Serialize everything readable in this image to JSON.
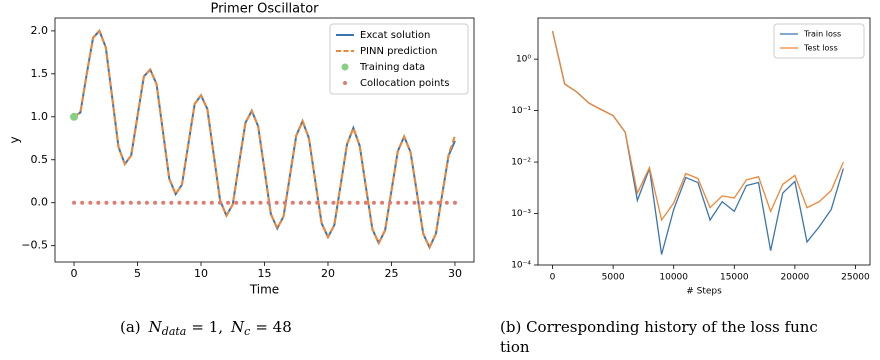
{
  "chart_data": [
    {
      "type": "line",
      "title": "Primer Oscillator",
      "xlabel": "Time",
      "ylabel": "y",
      "xlim": [
        -1.5,
        31.5
      ],
      "xticks": [
        0,
        5,
        10,
        15,
        20,
        25,
        30
      ],
      "ylim": [
        -0.69,
        2.15
      ],
      "yticks": [
        {
          "value": -0.5,
          "label": "−0.5"
        },
        {
          "value": 0,
          "label": "0.0"
        },
        0.5,
        {
          "value": 1,
          "label": "1.0"
        },
        1.5,
        {
          "value": 2,
          "label": "2.0"
        }
      ],
      "legend": "upper right",
      "series": [
        {
          "name": "Excat solution",
          "color": "#3a75b0",
          "linestyle": "solid",
          "x": [
            0,
            0.5,
            1,
            1.5,
            2,
            2.5,
            3,
            3.5,
            4,
            4.5,
            5,
            5.5,
            6,
            6.5,
            7,
            7.5,
            8,
            8.5,
            9,
            9.5,
            10,
            10.5,
            11,
            11.5,
            12,
            12.5,
            13,
            13.5,
            14,
            14.5,
            15,
            15.5,
            16,
            16.5,
            17,
            17.5,
            18,
            18.5,
            19,
            19.5,
            20,
            20.5,
            21,
            21.5,
            22,
            22.5,
            23,
            23.5,
            24,
            24.5,
            25,
            25.5,
            26,
            26.5,
            27,
            27.5,
            28,
            28.5,
            29,
            29.5,
            30
          ],
          "values": [
            1.0,
            1.05,
            1.5,
            1.92,
            2.0,
            1.81,
            1.23,
            0.65,
            0.45,
            0.55,
            1.01,
            1.47,
            1.55,
            1.38,
            0.83,
            0.28,
            0.1,
            0.21,
            0.68,
            1.15,
            1.25,
            1.09,
            0.56,
            0.03,
            -0.15,
            -0.02,
            0.46,
            0.93,
            1.07,
            0.89,
            0.38,
            -0.13,
            -0.3,
            -0.16,
            0.31,
            0.78,
            0.95,
            0.75,
            0.25,
            -0.24,
            -0.4,
            -0.26,
            0.21,
            0.68,
            0.87,
            0.66,
            0.17,
            -0.31,
            -0.47,
            -0.32,
            0.14,
            0.6,
            0.77,
            0.59,
            0.12,
            -0.36,
            -0.52,
            -0.36,
            0.1,
            0.55,
            0.72
          ]
        },
        {
          "name": "PINN prediction",
          "color": "#ef8636",
          "linestyle": "dashed",
          "x": [
            0,
            0.5,
            1,
            1.5,
            2,
            2.5,
            3,
            3.5,
            4,
            4.5,
            5,
            5.5,
            6,
            6.5,
            7,
            7.5,
            8,
            8.5,
            9,
            9.5,
            10,
            10.5,
            11,
            11.5,
            12,
            12.5,
            13,
            13.5,
            14,
            14.5,
            15,
            15.5,
            16,
            16.5,
            17,
            17.5,
            18,
            18.5,
            19,
            19.5,
            20,
            20.5,
            21,
            21.5,
            22,
            22.5,
            23,
            23.5,
            24,
            24.5,
            25,
            25.5,
            26,
            26.5,
            27,
            27.5,
            28,
            28.5,
            29,
            29.5,
            30
          ],
          "values": [
            1.0,
            1.05,
            1.5,
            1.92,
            2.0,
            1.81,
            1.23,
            0.65,
            0.45,
            0.55,
            1.01,
            1.47,
            1.55,
            1.38,
            0.83,
            0.28,
            0.1,
            0.21,
            0.68,
            1.15,
            1.25,
            1.09,
            0.56,
            0.03,
            -0.15,
            -0.02,
            0.46,
            0.93,
            1.07,
            0.89,
            0.38,
            -0.13,
            -0.3,
            -0.16,
            0.31,
            0.78,
            0.95,
            0.75,
            0.25,
            -0.24,
            -0.4,
            -0.26,
            0.21,
            0.68,
            0.87,
            0.66,
            0.17,
            -0.31,
            -0.47,
            -0.32,
            0.14,
            0.6,
            0.77,
            0.59,
            0.12,
            -0.36,
            -0.52,
            -0.36,
            0.1,
            0.56,
            0.78
          ]
        },
        {
          "name": "Training data",
          "color": "#86cf84",
          "linestyle": "none",
          "marker": "large",
          "x": [
            0
          ],
          "values": [
            1.0
          ]
        },
        {
          "name": "Collocation points",
          "color": "#e07b70",
          "linestyle": "none",
          "marker": "small",
          "x": [
            0,
            0.64,
            1.28,
            1.91,
            2.55,
            3.19,
            3.83,
            4.47,
            5.11,
            5.74,
            6.38,
            7.02,
            7.66,
            8.3,
            8.94,
            9.57,
            10.21,
            10.85,
            11.49,
            12.13,
            12.77,
            13.4,
            14.04,
            14.68,
            15.32,
            15.96,
            16.6,
            17.23,
            17.87,
            18.51,
            19.15,
            19.79,
            20.43,
            21.06,
            21.7,
            22.34,
            22.98,
            23.62,
            24.26,
            24.89,
            25.53,
            26.17,
            26.81,
            27.45,
            28.09,
            28.72,
            29.36,
            30
          ],
          "values": [
            0,
            0,
            0,
            0,
            0,
            0,
            0,
            0,
            0,
            0,
            0,
            0,
            0,
            0,
            0,
            0,
            0,
            0,
            0,
            0,
            0,
            0,
            0,
            0,
            0,
            0,
            0,
            0,
            0,
            0,
            0,
            0,
            0,
            0,
            0,
            0,
            0,
            0,
            0,
            0,
            0,
            0,
            0,
            0,
            0,
            0,
            0,
            0
          ]
        }
      ],
      "caption": {
        "label": "(a)",
        "terms": [
          {
            "symbol": "N",
            "subscript": "data",
            "rest": "= 1,"
          },
          {
            "symbol": "N",
            "subscript": "c",
            "rest": "= 48"
          }
        ]
      }
    },
    {
      "type": "line",
      "xlabel": "# Steps",
      "yscale": "log",
      "xlim": [
        -1200,
        26200
      ],
      "xticks": [
        0,
        5000,
        10000,
        15000,
        20000,
        25000
      ],
      "ylim": [
        0.0001,
        6.3
      ],
      "yticks": [
        {
          "value": 0.0001,
          "label": "10⁻⁴"
        },
        {
          "value": 0.001,
          "label": "10⁻³"
        },
        {
          "value": 0.01,
          "label": "10⁻²"
        },
        {
          "value": 0.1,
          "label": "10⁻¹"
        },
        {
          "value": 1,
          "label": "10⁰"
        }
      ],
      "legend": "upper right",
      "x": [
        0,
        1000,
        2000,
        3000,
        4000,
        5000,
        6000,
        7000,
        8000,
        9000,
        10000,
        11000,
        12000,
        13000,
        14000,
        15000,
        16000,
        17000,
        18000,
        19000,
        20000,
        21000,
        22000,
        23000,
        24000
      ],
      "series": [
        {
          "name": "Train loss",
          "color": "#3a75b0",
          "linestyle": "solid",
          "values": [
            3.5,
            0.33,
            0.23,
            0.14,
            0.105,
            0.08,
            0.038,
            0.0018,
            0.0075,
            0.00016,
            0.0012,
            0.005,
            0.004,
            0.00075,
            0.0017,
            0.0011,
            0.0035,
            0.004,
            0.00019,
            0.0025,
            0.0042,
            0.00028,
            0.00055,
            0.0012,
            0.0075
          ]
        },
        {
          "name": "Test loss",
          "color": "#ef8636",
          "linestyle": "solid",
          "values": [
            3.5,
            0.33,
            0.23,
            0.14,
            0.105,
            0.08,
            0.038,
            0.0025,
            0.0078,
            0.00075,
            0.0016,
            0.006,
            0.0048,
            0.0013,
            0.0022,
            0.002,
            0.0045,
            0.0052,
            0.0011,
            0.0037,
            0.0055,
            0.0013,
            0.0017,
            0.0028,
            0.01
          ]
        }
      ],
      "caption": {
        "lines": [
          "(b) Corresponding history of the loss func",
          "tion"
        ]
      }
    }
  ]
}
